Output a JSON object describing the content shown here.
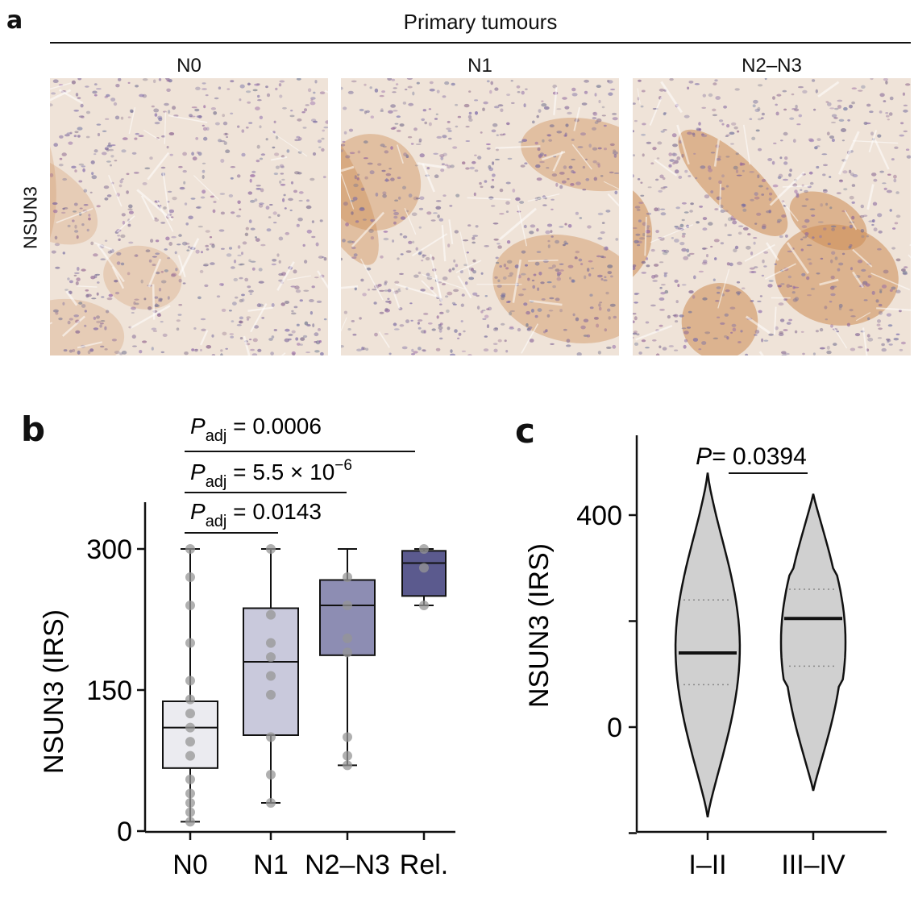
{
  "panel_a": {
    "letter": "a",
    "header": "Primary tumours",
    "row_label": "NSUN3",
    "columns": [
      "N0",
      "N1",
      "N2–N3"
    ],
    "stain_intensity": [
      0.25,
      0.6,
      0.9
    ]
  },
  "panel_b": {
    "letter": "b",
    "comparisons": [
      {
        "p_sub": "adj",
        "p_value": "0.0006",
        "from": "N0",
        "to": "Rel."
      },
      {
        "p_sub": "adj",
        "p_value_base": "5.5 × 10",
        "p_value_exp": "−6",
        "from": "N0",
        "to": "N2–N3"
      },
      {
        "p_sub": "adj",
        "p_value": "0.0143",
        "from": "N0",
        "to": "N1"
      }
    ]
  },
  "panel_c": {
    "letter": "c",
    "p_label": "P",
    "p_value": "= 0.0394"
  },
  "chart_data": [
    {
      "type": "box",
      "ylabel": "NSUN3 (IRS)",
      "ylim": [
        0,
        300
      ],
      "yticks": [
        0,
        150,
        300
      ],
      "categories": [
        "N0",
        "N1",
        "N2–N3",
        "Rel."
      ],
      "fill_colors": [
        "#ebebf0",
        "#c9c9dc",
        "#8d8db3",
        "#5b5a8e"
      ],
      "boxes": [
        {
          "min": 10,
          "q1": 67,
          "median": 110,
          "q3": 138,
          "max": 300
        },
        {
          "min": 30,
          "q1": 102,
          "median": 180,
          "q3": 237,
          "max": 300
        },
        {
          "min": 70,
          "q1": 187,
          "median": 240,
          "q3": 267,
          "max": 300
        },
        {
          "min": 240,
          "q1": 250,
          "median": 285,
          "q3": 298,
          "max": 300
        }
      ],
      "points": [
        [
          10,
          20,
          30,
          40,
          55,
          80,
          95,
          110,
          125,
          140,
          160,
          200,
          240,
          270,
          300
        ],
        [
          30,
          60,
          100,
          145,
          165,
          185,
          200,
          230,
          300
        ],
        [
          70,
          80,
          100,
          190,
          205,
          240,
          270
        ],
        [
          240,
          280,
          300
        ]
      ]
    },
    {
      "type": "violin",
      "ylabel": "NSUN3 (IRS)",
      "ylim": [
        -110,
        470
      ],
      "yticks": [
        0,
        400
      ],
      "categories": [
        "I–II",
        "III–IV"
      ],
      "fill_color": "#d0d0d0",
      "violins": [
        {
          "min": -170,
          "max": 480,
          "median": 140,
          "q1": 80,
          "q3": 240
        },
        {
          "min": -120,
          "max": 440,
          "median": 205,
          "q1": 115,
          "q3": 260
        }
      ]
    }
  ]
}
